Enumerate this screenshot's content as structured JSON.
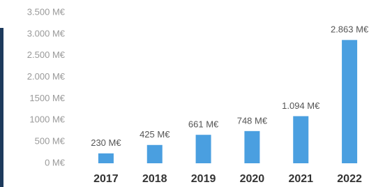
{
  "chart_data": {
    "type": "bar",
    "categories": [
      "2017",
      "2018",
      "2019",
      "2020",
      "2021",
      "2022"
    ],
    "values": [
      230,
      425,
      661,
      748,
      1094,
      2863
    ],
    "value_labels": [
      "230 M€",
      "425 M€",
      "661 M€",
      "748 M€",
      "1.094 M€",
      "2.863 M€"
    ],
    "color": "#4a9fe0",
    "ylim": [
      0,
      3500
    ],
    "yticks": [
      {
        "value": 0,
        "label": "0 M€"
      },
      {
        "value": 500,
        "label": "500 M€"
      },
      {
        "value": 1000,
        "label": "1000 M€"
      },
      {
        "value": 1500,
        "label": "1500 M€"
      },
      {
        "value": 2000,
        "label": "2.000 M€"
      },
      {
        "value": 2500,
        "label": "2.500 M€"
      },
      {
        "value": 3000,
        "label": "3.000 M€"
      },
      {
        "value": 3500,
        "label": "3.500 M€"
      }
    ],
    "grid": false
  }
}
